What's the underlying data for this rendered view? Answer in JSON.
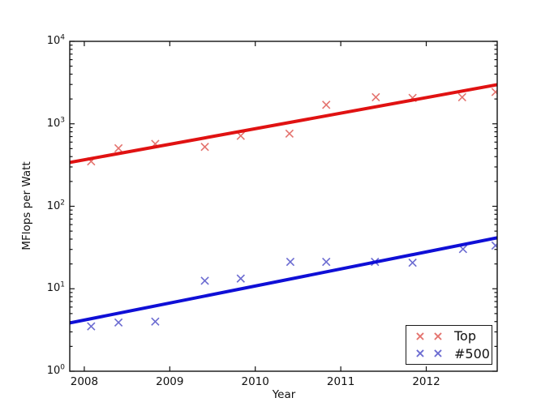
{
  "chart_data": {
    "type": "scatter",
    "title": "",
    "xlabel": "Year",
    "ylabel": "MFlops per Watt",
    "yscale": "log",
    "xlim": [
      2007.83,
      2012.83
    ],
    "ylim": [
      1,
      10000
    ],
    "grid": false,
    "legend_position": "lower right",
    "marker_glyph": "×",
    "y_tick_base": "10",
    "y_ticks": [
      {
        "exp": "0"
      },
      {
        "exp": "1"
      },
      {
        "exp": "2"
      },
      {
        "exp": "3"
      },
      {
        "exp": "4"
      }
    ],
    "x_ticks": [
      {
        "value": 2008,
        "label": "2008"
      },
      {
        "value": 2009,
        "label": "2009"
      },
      {
        "value": 2010,
        "label": "2010"
      },
      {
        "value": 2011,
        "label": "2011"
      },
      {
        "value": 2012,
        "label": "2012"
      }
    ],
    "series": [
      {
        "name": "Top",
        "marker": "x",
        "marker_color": "#e4736e",
        "line_color": "#e01212",
        "x": [
          2008.08,
          2008.4,
          2008.83,
          2009.41,
          2009.83,
          2010.4,
          2010.83,
          2011.41,
          2011.84,
          2012.42,
          2012.81
        ],
        "y": [
          350,
          505,
          570,
          525,
          715,
          760,
          1700,
          2100,
          2060,
          2100,
          2430
        ],
        "fit_line": {
          "x": [
            2007.83,
            2012.83
          ],
          "y": [
            340,
            2980
          ]
        }
      },
      {
        "name": "#500",
        "marker": "x",
        "marker_color": "#6b6bd1",
        "line_color": "#0f0fd6",
        "x": [
          2008.08,
          2008.4,
          2008.83,
          2009.41,
          2009.83,
          2010.41,
          2010.83,
          2011.4,
          2011.84,
          2012.43,
          2012.81
        ],
        "y": [
          3.5,
          3.9,
          4.0,
          12.5,
          13.3,
          21.2,
          21.2,
          21.2,
          20.7,
          30.3,
          33.4
        ],
        "fit_line": {
          "x": [
            2007.83,
            2012.83
          ],
          "y": [
            3.85,
            41.5
          ]
        }
      }
    ]
  }
}
